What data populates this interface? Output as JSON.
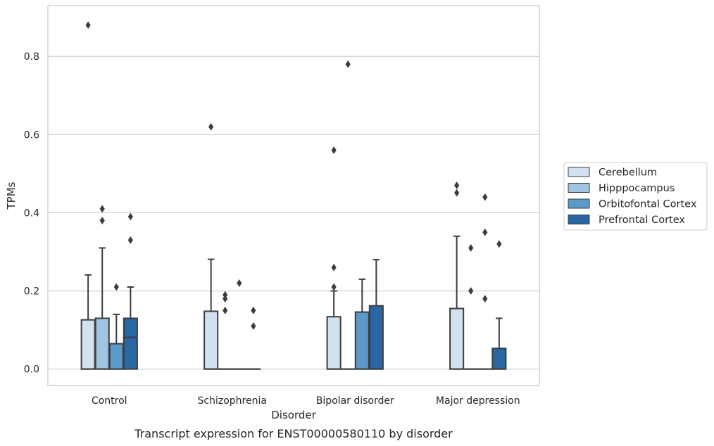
{
  "chart_data": {
    "type": "box",
    "title": "",
    "caption": "Transcript expression for ENST00000580110 by disorder",
    "xlabel": "Disorder",
    "ylabel": "TPMs",
    "ylim": [
      -0.042,
      0.93
    ],
    "yticks": [
      0.0,
      0.2,
      0.4,
      0.6,
      0.8
    ],
    "ytick_labels": [
      "0.0",
      "0.2",
      "0.4",
      "0.6",
      "0.8"
    ],
    "grid": "horizontal",
    "legend_position": "right",
    "categories": [
      "Control",
      "Schizophrenia",
      "Bipolar disorder",
      "Major depression"
    ],
    "series": [
      {
        "name": "Cerebellum",
        "color": "#d1e1ef",
        "boxes": [
          {
            "q1": 0.0,
            "median": 0.0,
            "q3": 0.126,
            "whisker_low": 0.0,
            "whisker_high": 0.241,
            "outliers": [
              0.88
            ]
          },
          {
            "q1": 0.0,
            "median": 0.0,
            "q3": 0.148,
            "whisker_low": 0.0,
            "whisker_high": 0.281,
            "outliers": [
              0.62
            ]
          },
          {
            "q1": 0.0,
            "median": 0.0,
            "q3": 0.134,
            "whisker_low": 0.0,
            "whisker_high": 0.2,
            "outliers": [
              0.56,
              0.26,
              0.21
            ]
          },
          {
            "q1": 0.0,
            "median": 0.0,
            "q3": 0.155,
            "whisker_low": 0.0,
            "whisker_high": 0.34,
            "outliers": [
              0.47,
              0.451
            ]
          }
        ]
      },
      {
        "name": "Hipppocampus",
        "color": "#9ec5e0",
        "boxes": [
          {
            "q1": 0.0,
            "median": 0.0,
            "q3": 0.13,
            "whisker_low": 0.0,
            "whisker_high": 0.31,
            "outliers": [
              0.41,
              0.38
            ]
          },
          {
            "q1": 0.0,
            "median": 0.0,
            "q3": 0.0,
            "whisker_low": 0.0,
            "whisker_high": 0.0,
            "outliers": [
              0.19,
              0.18,
              0.15
            ]
          },
          {
            "q1": 0.0,
            "median": 0.0,
            "q3": 0.0,
            "whisker_low": 0.0,
            "whisker_high": 0.0,
            "outliers": [
              0.78
            ]
          },
          {
            "q1": 0.0,
            "median": 0.0,
            "q3": 0.0,
            "whisker_low": 0.0,
            "whisker_high": 0.0,
            "outliers": [
              0.31,
              0.2
            ]
          }
        ]
      },
      {
        "name": "Orbitofontal Cortex",
        "color": "#5b9ac8",
        "boxes": [
          {
            "q1": 0.0,
            "median": 0.0,
            "q3": 0.065,
            "whisker_low": 0.0,
            "whisker_high": 0.14,
            "outliers": [
              0.21
            ]
          },
          {
            "q1": 0.0,
            "median": 0.0,
            "q3": 0.0,
            "whisker_low": 0.0,
            "whisker_high": 0.0,
            "outliers": [
              0.22
            ]
          },
          {
            "q1": 0.0,
            "median": 0.0,
            "q3": 0.146,
            "whisker_low": 0.0,
            "whisker_high": 0.23,
            "outliers": []
          },
          {
            "q1": 0.0,
            "median": 0.0,
            "q3": 0.0,
            "whisker_low": 0.0,
            "whisker_high": 0.0,
            "outliers": [
              0.44,
              0.35,
              0.18
            ]
          }
        ]
      },
      {
        "name": "Prefrontal Cortex",
        "color": "#2866a4",
        "boxes": [
          {
            "q1": 0.0,
            "median": 0.081,
            "q3": 0.13,
            "whisker_low": 0.0,
            "whisker_high": 0.21,
            "outliers": [
              0.39,
              0.33
            ]
          },
          {
            "q1": 0.0,
            "median": 0.0,
            "q3": 0.0,
            "whisker_low": 0.0,
            "whisker_high": 0.0,
            "outliers": [
              0.15,
              0.11
            ]
          },
          {
            "q1": 0.0,
            "median": 0.0,
            "q3": 0.162,
            "whisker_low": 0.0,
            "whisker_high": 0.28,
            "outliers": []
          },
          {
            "q1": 0.0,
            "median": 0.0,
            "q3": 0.053,
            "whisker_low": 0.0,
            "whisker_high": 0.13,
            "outliers": [
              0.32
            ]
          }
        ]
      }
    ]
  }
}
